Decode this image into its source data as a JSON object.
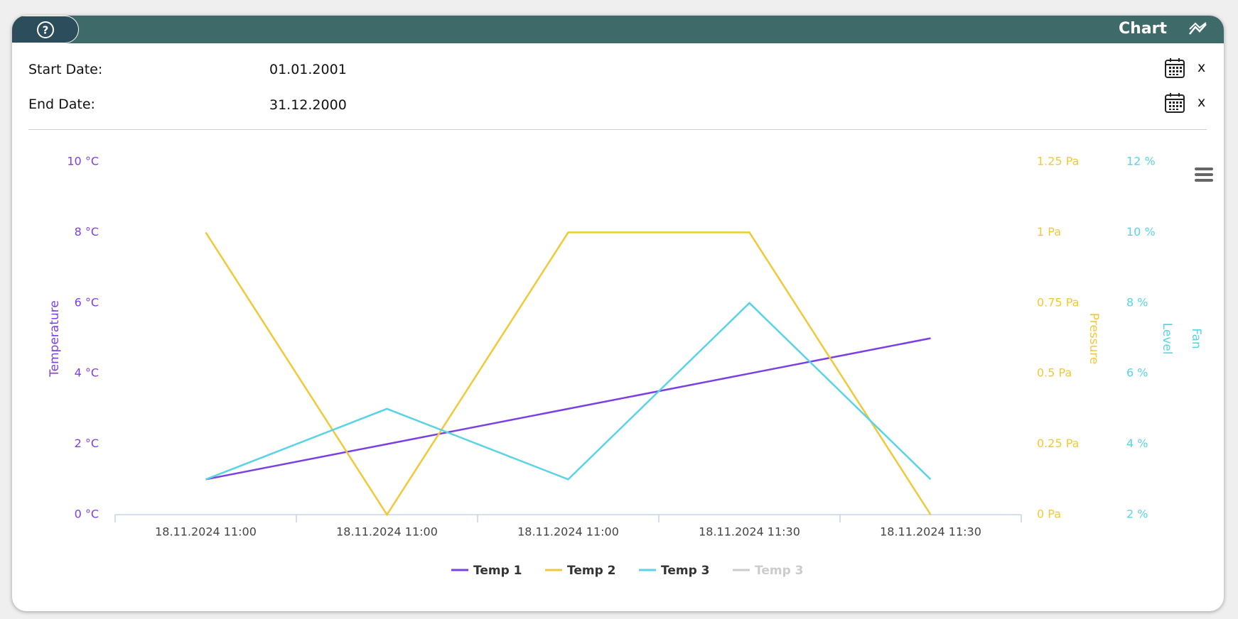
{
  "header": {
    "title": "Chart"
  },
  "fields": [
    {
      "label": "Start Date:",
      "value": "01.01.2001",
      "clear": "x"
    },
    {
      "label": "End Date:",
      "value": "31.12.2000",
      "clear": "x"
    }
  ],
  "chart_data": {
    "type": "line",
    "categories": [
      "18.11.2024 11:00",
      "18.11.2024 11:00",
      "18.11.2024 11:00",
      "18.11.2024 11:30",
      "18.11.2024 11:30"
    ],
    "ylabel": "Temperature",
    "ylim": [
      0,
      10
    ],
    "yticks": [
      {
        "value": 0,
        "label": "0 °C"
      },
      {
        "value": 2,
        "label": "2 °C"
      },
      {
        "value": 4,
        "label": "4 °C"
      },
      {
        "value": 6,
        "label": "6 °C"
      },
      {
        "value": 8,
        "label": "8 °C"
      },
      {
        "value": 10,
        "label": "10 °C"
      }
    ],
    "y2label": "Pressure",
    "y2lim": [
      0,
      1.25
    ],
    "y2ticks": [
      {
        "value": 0,
        "label": "0 Pa"
      },
      {
        "value": 0.25,
        "label": "0.25 Pa"
      },
      {
        "value": 0.5,
        "label": "0.5 Pa"
      },
      {
        "value": 0.75,
        "label": "0.75 Pa"
      },
      {
        "value": 1,
        "label": "1 Pa"
      },
      {
        "value": 1.25,
        "label": "1.25 Pa"
      }
    ],
    "y3label": "Level",
    "y3lim": [
      2,
      12
    ],
    "y3ticks": [
      {
        "value": 2,
        "label": "2 %"
      },
      {
        "value": 4,
        "label": "4 %"
      },
      {
        "value": 6,
        "label": "6 %"
      },
      {
        "value": 8,
        "label": "8 %"
      },
      {
        "value": 10,
        "label": "10 %"
      },
      {
        "value": 12,
        "label": "12 %"
      }
    ],
    "y4label": "Fan",
    "series": [
      {
        "name": "Temp 1",
        "color": "#7b3fe4",
        "axis": "y",
        "values": [
          1,
          2,
          3,
          4,
          5
        ]
      },
      {
        "name": "Temp 2",
        "color": "#f0c93a",
        "axis": "y2",
        "values": [
          1,
          0,
          1,
          1,
          0
        ]
      },
      {
        "name": "Temp 3",
        "color": "#5ad3e6",
        "axis": "y3",
        "values": [
          3,
          5,
          3,
          8,
          3
        ]
      },
      {
        "name": "Temp 3",
        "color": "#cccccc",
        "axis": "y3",
        "hidden": true,
        "values": [
          null,
          null,
          null,
          null,
          null
        ]
      }
    ]
  }
}
